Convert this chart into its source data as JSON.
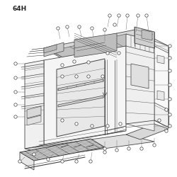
{
  "title": "64H",
  "bg_color": "#ffffff",
  "line_color": "#444444",
  "lw_main": 0.6,
  "lw_thin": 0.35,
  "lw_thick": 0.9,
  "circle_r": 2.2,
  "fig_width": 2.5,
  "fig_height": 2.5,
  "dpi": 100,
  "img_size": 250
}
